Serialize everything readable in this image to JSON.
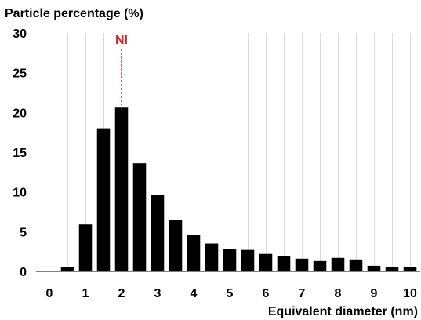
{
  "chart_data": {
    "type": "bar",
    "ylabel": "Particle percentage (%)",
    "xlabel": "Equivalent diameter (nm)",
    "xlim": [
      0,
      10
    ],
    "ylim": [
      0,
      30
    ],
    "xticks": [
      0,
      1,
      2,
      3,
      4,
      5,
      6,
      7,
      8,
      9,
      10
    ],
    "yticks": [
      0,
      5,
      10,
      15,
      20,
      25,
      30
    ],
    "bin_width": 0.5,
    "x": [
      0.5,
      1.0,
      1.5,
      2.0,
      2.5,
      3.0,
      3.5,
      4.0,
      4.5,
      5.0,
      5.5,
      6.0,
      6.5,
      7.0,
      7.5,
      8.0,
      8.5,
      9.0,
      9.5,
      10.0
    ],
    "values": [
      0.5,
      5.9,
      18.0,
      20.6,
      13.6,
      9.6,
      6.5,
      4.6,
      3.5,
      2.8,
      2.7,
      2.2,
      1.9,
      1.6,
      1.3,
      1.7,
      1.5,
      0.7,
      0.5,
      0.5
    ],
    "grid": "vertical",
    "bar_color": "#000000",
    "annotation": {
      "text": "NI",
      "x": 2.0,
      "y": 20.6,
      "color": "#e02020",
      "line": "dashed"
    }
  }
}
